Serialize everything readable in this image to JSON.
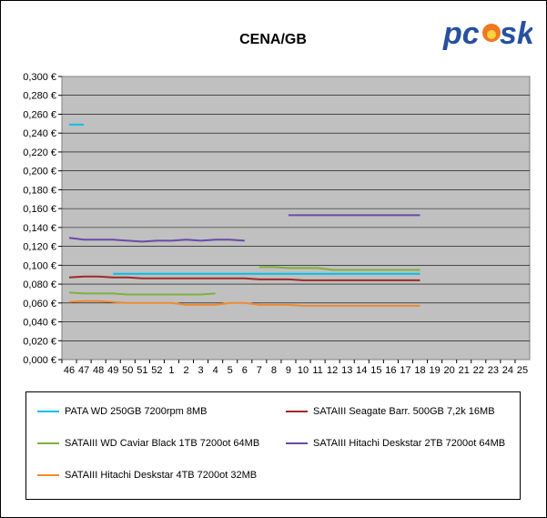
{
  "chart_data": {
    "type": "line",
    "title": "CENA/GB",
    "xlabel": "",
    "ylabel": "",
    "categories": [
      "46",
      "47",
      "48",
      "49",
      "50",
      "51",
      "52",
      "1",
      "2",
      "3",
      "4",
      "5",
      "6",
      "7",
      "8",
      "9",
      "10",
      "11",
      "12",
      "13",
      "14",
      "15",
      "16",
      "17",
      "18",
      "19",
      "20",
      "21",
      "22",
      "23",
      "24",
      "25"
    ],
    "ylim": [
      0,
      0.3
    ],
    "yticks": [
      "0,000 €",
      "0,020 €",
      "0,040 €",
      "0,060 €",
      "0,080 €",
      "0,100 €",
      "0,120 €",
      "0,140 €",
      "0,160 €",
      "0,180 €",
      "0,200 €",
      "0,220 €",
      "0,240 €",
      "0,260 €",
      "0,280 €",
      "0,300 €"
    ],
    "grid": true,
    "legend_position": "bottom",
    "series": [
      {
        "name": "PATA WD 250GB 7200rpm 8MB",
        "color": "#00c0e8",
        "values": [
          0.249,
          0.249,
          null,
          0.091,
          0.091,
          0.091,
          0.091,
          0.091,
          0.091,
          0.091,
          0.091,
          0.091,
          0.091,
          0.091,
          0.091,
          0.091,
          0.091,
          0.091,
          0.091,
          0.091,
          0.091,
          0.091,
          0.091,
          0.091,
          0.091,
          null,
          null,
          null,
          null,
          null,
          null,
          null
        ]
      },
      {
        "name": "SATAIII Seagate Barr. 500GB 7,2k 16MB",
        "color": "#a02828",
        "values": [
          0.087,
          0.088,
          0.088,
          0.087,
          0.087,
          0.086,
          0.086,
          0.086,
          0.086,
          0.086,
          0.086,
          0.086,
          0.086,
          0.085,
          0.085,
          0.085,
          0.084,
          0.084,
          0.084,
          0.084,
          0.084,
          0.084,
          0.084,
          0.084,
          0.084,
          null,
          null,
          null,
          null,
          null,
          null,
          null
        ]
      },
      {
        "name": "SATAIII WD Caviar Black 1TB 7200ot 64MB",
        "color": "#80b040",
        "values": [
          0.071,
          0.07,
          0.07,
          0.07,
          0.069,
          0.069,
          0.069,
          0.069,
          0.069,
          0.069,
          0.07,
          null,
          null,
          0.098,
          0.098,
          0.097,
          0.097,
          0.097,
          0.095,
          0.095,
          0.095,
          0.095,
          0.095,
          0.095,
          0.095,
          null,
          null,
          null,
          null,
          null,
          null,
          null
        ]
      },
      {
        "name": "SATAIII Hitachi Deskstar 2TB 7200ot 64MB",
        "color": "#6a4aa8",
        "values": [
          0.129,
          0.127,
          0.127,
          0.127,
          0.126,
          0.125,
          0.126,
          0.126,
          0.127,
          0.126,
          0.127,
          0.127,
          0.126,
          null,
          null,
          0.153,
          0.153,
          0.153,
          0.153,
          0.153,
          0.153,
          0.153,
          0.153,
          0.153,
          0.153,
          null,
          null,
          null,
          null,
          null,
          null,
          null
        ]
      },
      {
        "name": "SATAIII Hitachi Deskstar 4TB 7200ot 32MB",
        "color": "#f08a30",
        "values": [
          0.061,
          0.062,
          0.062,
          0.061,
          0.06,
          0.06,
          0.06,
          0.06,
          0.058,
          0.058,
          0.058,
          0.06,
          0.06,
          0.058,
          0.058,
          0.058,
          0.057,
          0.057,
          0.057,
          0.057,
          0.057,
          0.057,
          0.057,
          0.057,
          0.057,
          null,
          null,
          null,
          null,
          null,
          null,
          null
        ]
      }
    ]
  },
  "logo": {
    "text_dark": "pc",
    "text_light": "sk",
    "primary_color": "#2850a0",
    "flame_color": "#f07820"
  }
}
